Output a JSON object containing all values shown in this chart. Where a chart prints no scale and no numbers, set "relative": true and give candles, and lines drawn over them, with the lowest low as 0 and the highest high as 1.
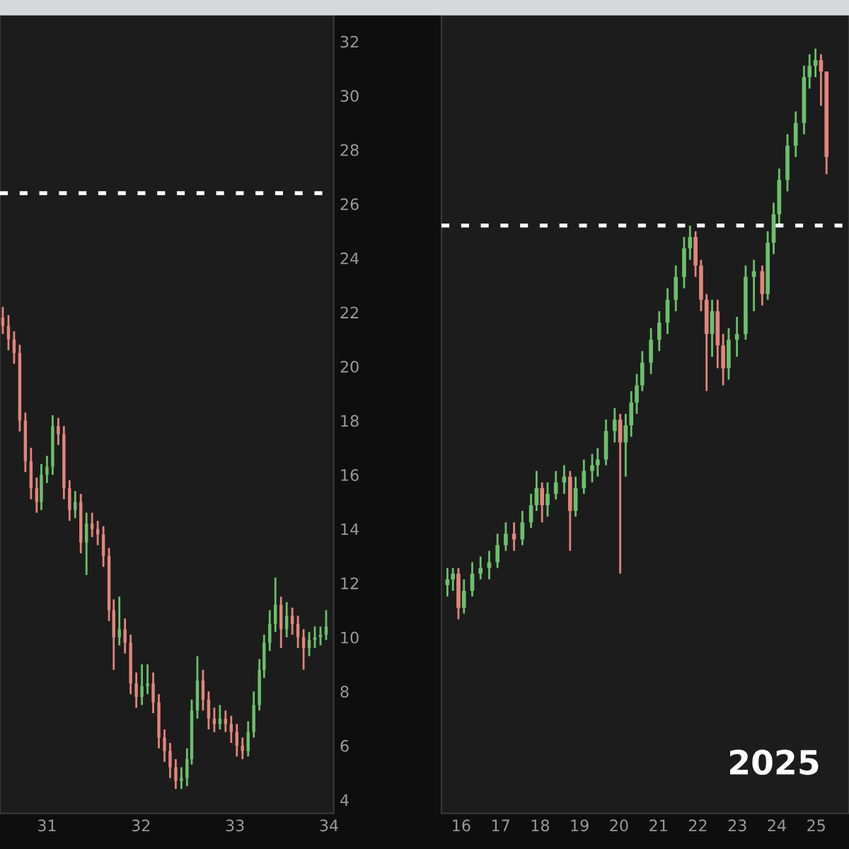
{
  "chart_data": [
    {
      "type": "candlestick",
      "xlim": [
        30.5,
        34.05
      ],
      "ylim": [
        3.5,
        33
      ],
      "xticks": [
        31,
        32,
        33,
        34
      ],
      "yticks": [
        4,
        6,
        8,
        10,
        12,
        14,
        16,
        18,
        20,
        22,
        24,
        26,
        28,
        30,
        32
      ],
      "grid": false,
      "ref_lines": [
        {
          "axis": "y",
          "value": 26.4,
          "color": "#ffffff",
          "line_style": "dotted"
        }
      ],
      "x": [
        30.53,
        30.59,
        30.65,
        30.71,
        30.77,
        30.83,
        30.89,
        30.94,
        31.0,
        31.06,
        31.12,
        31.18,
        31.24,
        31.3,
        31.36,
        31.42,
        31.48,
        31.54,
        31.6,
        31.66,
        31.71,
        31.77,
        31.83,
        31.89,
        31.95,
        32.01,
        32.07,
        32.13,
        32.19,
        32.25,
        32.31,
        32.37,
        32.43,
        32.49,
        32.54,
        32.6,
        32.66,
        32.72,
        32.78,
        32.84,
        32.9,
        32.96,
        33.02,
        33.08,
        33.14,
        33.2,
        33.26,
        33.31,
        33.37,
        33.43,
        33.49,
        33.55,
        33.61,
        33.67,
        33.73,
        33.79,
        33.85,
        33.91,
        33.97
      ],
      "ohlc": [
        [
          21.8,
          22.2,
          21.2,
          21.5
        ],
        [
          21.5,
          21.9,
          20.6,
          21.0
        ],
        [
          21.0,
          21.3,
          20.1,
          20.5
        ],
        [
          20.5,
          20.8,
          17.6,
          18.0
        ],
        [
          18.0,
          18.3,
          16.1,
          16.5
        ],
        [
          16.5,
          17.0,
          15.1,
          15.5
        ],
        [
          15.5,
          15.9,
          14.6,
          15.0
        ],
        [
          15.0,
          16.4,
          14.7,
          16.0
        ],
        [
          16.0,
          16.7,
          15.7,
          16.3
        ],
        [
          16.3,
          18.2,
          16.0,
          17.8
        ],
        [
          17.8,
          18.1,
          17.1,
          17.5
        ],
        [
          17.5,
          17.8,
          15.1,
          15.5
        ],
        [
          15.5,
          15.8,
          14.3,
          14.7
        ],
        [
          14.7,
          15.4,
          14.4,
          15.0
        ],
        [
          15.0,
          15.3,
          13.1,
          13.5
        ],
        [
          13.5,
          14.6,
          12.3,
          14.2
        ],
        [
          14.2,
          14.6,
          13.7,
          14.0
        ],
        [
          14.0,
          14.3,
          13.4,
          13.8
        ],
        [
          13.8,
          14.1,
          12.6,
          13.0
        ],
        [
          13.0,
          13.3,
          10.6,
          11.0
        ],
        [
          11.0,
          11.4,
          8.8,
          10.0
        ],
        [
          10.0,
          11.5,
          9.7,
          10.3
        ],
        [
          10.3,
          10.7,
          9.4,
          9.8
        ],
        [
          9.8,
          10.1,
          7.9,
          8.3
        ],
        [
          8.3,
          8.7,
          7.4,
          7.8
        ],
        [
          7.8,
          9.0,
          7.5,
          8.2
        ],
        [
          8.2,
          9.0,
          7.9,
          8.3
        ],
        [
          8.3,
          8.7,
          7.2,
          7.6
        ],
        [
          7.6,
          7.9,
          5.9,
          6.3
        ],
        [
          6.3,
          6.6,
          5.4,
          5.8
        ],
        [
          5.8,
          6.1,
          4.8,
          5.2
        ],
        [
          5.2,
          5.5,
          4.4,
          4.7
        ],
        [
          4.7,
          5.2,
          4.4,
          4.8
        ],
        [
          4.8,
          5.9,
          4.5,
          5.5
        ],
        [
          5.5,
          7.7,
          5.3,
          7.3
        ],
        [
          7.3,
          9.3,
          7.0,
          8.4
        ],
        [
          8.4,
          8.8,
          7.3,
          7.7
        ],
        [
          7.7,
          8.0,
          6.6,
          7.0
        ],
        [
          7.0,
          7.4,
          6.5,
          6.8
        ],
        [
          6.8,
          7.5,
          6.6,
          7.0
        ],
        [
          7.0,
          7.3,
          6.5,
          6.8
        ],
        [
          6.8,
          7.1,
          6.1,
          6.5
        ],
        [
          6.5,
          6.8,
          5.6,
          6.0
        ],
        [
          6.0,
          6.3,
          5.5,
          5.8
        ],
        [
          5.8,
          6.9,
          5.6,
          6.5
        ],
        [
          6.5,
          8.0,
          6.3,
          7.5
        ],
        [
          7.5,
          9.2,
          7.3,
          8.8
        ],
        [
          8.8,
          10.1,
          8.5,
          9.8
        ],
        [
          9.8,
          11.0,
          9.5,
          10.5
        ],
        [
          10.5,
          12.2,
          10.2,
          11.2
        ],
        [
          11.2,
          11.5,
          9.6,
          10.3
        ],
        [
          10.3,
          11.3,
          10.0,
          10.8
        ],
        [
          10.8,
          11.1,
          10.1,
          10.5
        ],
        [
          10.5,
          10.8,
          9.6,
          10.0
        ],
        [
          10.0,
          10.3,
          8.8,
          9.6
        ],
        [
          9.6,
          10.2,
          9.3,
          9.9
        ],
        [
          9.9,
          10.4,
          9.6,
          10.0
        ],
        [
          10.0,
          10.4,
          9.7,
          10.1
        ],
        [
          10.1,
          11.0,
          9.9,
          10.4
        ]
      ]
    },
    {
      "type": "candlestick",
      "relative": true,
      "xlim": [
        15.5,
        25.83
      ],
      "xticks": [
        16,
        17,
        18,
        19,
        20,
        21,
        22,
        23,
        24,
        25
      ],
      "grid": false,
      "annotations": [
        "2025"
      ],
      "ref_lines": [
        {
          "axis": "y",
          "value": 0.69,
          "color": "#ffffff",
          "line_style": "dotted"
        }
      ],
      "x": [
        15.65,
        15.79,
        15.93,
        16.07,
        16.28,
        16.49,
        16.71,
        16.92,
        17.13,
        17.34,
        17.55,
        17.77,
        17.91,
        18.05,
        18.19,
        18.4,
        18.61,
        18.76,
        18.9,
        19.11,
        19.32,
        19.46,
        19.67,
        19.89,
        20.03,
        20.17,
        20.31,
        20.45,
        20.59,
        20.81,
        21.02,
        21.23,
        21.44,
        21.65,
        21.8,
        21.94,
        22.08,
        22.22,
        22.36,
        22.5,
        22.64,
        22.78,
        22.99,
        23.21,
        23.42,
        23.63,
        23.77,
        23.92,
        24.06,
        24.27,
        24.48,
        24.69,
        24.83,
        24.98,
        25.12,
        25.26
      ],
      "ohlc": [
        [
          0.06,
          0.09,
          0.04,
          0.07
        ],
        [
          0.07,
          0.09,
          0.05,
          0.08
        ],
        [
          0.08,
          0.09,
          0.0,
          0.02
        ],
        [
          0.02,
          0.07,
          0.01,
          0.05
        ],
        [
          0.05,
          0.1,
          0.04,
          0.08
        ],
        [
          0.08,
          0.11,
          0.07,
          0.09
        ],
        [
          0.09,
          0.12,
          0.07,
          0.1
        ],
        [
          0.1,
          0.15,
          0.09,
          0.13
        ],
        [
          0.13,
          0.17,
          0.12,
          0.15
        ],
        [
          0.15,
          0.17,
          0.12,
          0.14
        ],
        [
          0.14,
          0.19,
          0.13,
          0.17
        ],
        [
          0.17,
          0.22,
          0.16,
          0.2
        ],
        [
          0.2,
          0.26,
          0.19,
          0.23
        ],
        [
          0.23,
          0.24,
          0.17,
          0.2
        ],
        [
          0.2,
          0.24,
          0.18,
          0.22
        ],
        [
          0.22,
          0.26,
          0.21,
          0.24
        ],
        [
          0.24,
          0.27,
          0.22,
          0.25
        ],
        [
          0.25,
          0.26,
          0.12,
          0.19
        ],
        [
          0.19,
          0.25,
          0.18,
          0.23
        ],
        [
          0.23,
          0.28,
          0.22,
          0.26
        ],
        [
          0.26,
          0.29,
          0.24,
          0.27
        ],
        [
          0.27,
          0.3,
          0.25,
          0.28
        ],
        [
          0.28,
          0.35,
          0.27,
          0.33
        ],
        [
          0.33,
          0.37,
          0.31,
          0.35
        ],
        [
          0.35,
          0.36,
          0.08,
          0.31
        ],
        [
          0.31,
          0.36,
          0.25,
          0.34
        ],
        [
          0.34,
          0.4,
          0.32,
          0.38
        ],
        [
          0.38,
          0.43,
          0.36,
          0.41
        ],
        [
          0.41,
          0.47,
          0.4,
          0.45
        ],
        [
          0.45,
          0.51,
          0.43,
          0.49
        ],
        [
          0.49,
          0.54,
          0.47,
          0.52
        ],
        [
          0.52,
          0.58,
          0.5,
          0.56
        ],
        [
          0.56,
          0.62,
          0.54,
          0.6
        ],
        [
          0.6,
          0.67,
          0.58,
          0.65
        ],
        [
          0.65,
          0.69,
          0.63,
          0.67
        ],
        [
          0.67,
          0.68,
          0.6,
          0.62
        ],
        [
          0.62,
          0.63,
          0.54,
          0.56
        ],
        [
          0.56,
          0.57,
          0.4,
          0.5
        ],
        [
          0.5,
          0.56,
          0.46,
          0.54
        ],
        [
          0.54,
          0.56,
          0.44,
          0.48
        ],
        [
          0.48,
          0.5,
          0.41,
          0.44
        ],
        [
          0.44,
          0.51,
          0.42,
          0.49
        ],
        [
          0.49,
          0.53,
          0.46,
          0.5
        ],
        [
          0.5,
          0.62,
          0.49,
          0.6
        ],
        [
          0.6,
          0.63,
          0.54,
          0.61
        ],
        [
          0.61,
          0.62,
          0.55,
          0.57
        ],
        [
          0.57,
          0.68,
          0.56,
          0.66
        ],
        [
          0.66,
          0.73,
          0.64,
          0.71
        ],
        [
          0.71,
          0.79,
          0.69,
          0.77
        ],
        [
          0.77,
          0.85,
          0.75,
          0.83
        ],
        [
          0.83,
          0.89,
          0.81,
          0.87
        ],
        [
          0.87,
          0.97,
          0.85,
          0.95
        ],
        [
          0.95,
          0.99,
          0.93,
          0.97
        ],
        [
          0.97,
          1.0,
          0.95,
          0.98
        ],
        [
          0.98,
          0.99,
          0.9,
          0.96
        ],
        [
          0.96,
          0.96,
          0.78,
          0.81
        ]
      ]
    }
  ]
}
